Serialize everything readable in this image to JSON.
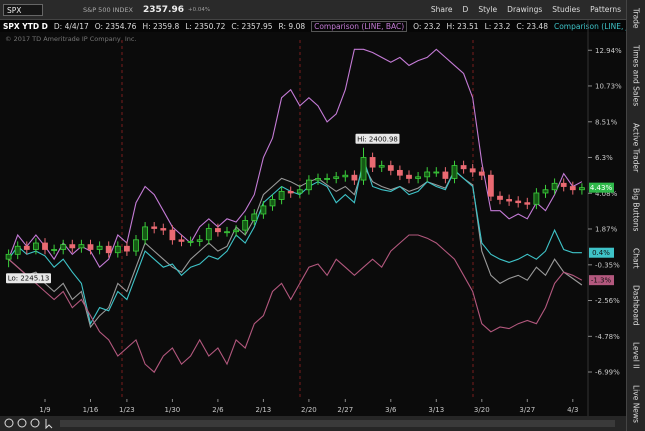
{
  "toolbar": {
    "symbol": "SPX",
    "description": "S&P 500 INDEX",
    "last": "2357.96",
    "change": "+0.04%",
    "buttons": [
      "Share",
      "D",
      "Style",
      "Drawings",
      "Studies",
      "Patterns"
    ]
  },
  "header": {
    "study": "SPX YTD D",
    "fields": [
      "D: 4/4/17",
      "O: 2354.76",
      "H: 2359.8",
      "L: 2350.72",
      "C: 2357.95",
      "R: 9.08"
    ],
    "bac_fields": [
      "O: 23.2",
      "H: 23.51",
      "L: 23.2",
      "C: 23.48"
    ]
  },
  "copyright": "© 2017 TD Ameritrade IP Company, Inc.",
  "side_tabs": [
    "Trade",
    "Times and Sales",
    "Active Trader",
    "Big Buttons",
    "Chart",
    "Dashboard",
    "Level II",
    "Live News"
  ],
  "chart_data": {
    "type": "candlestick",
    "categories": [
      null,
      null,
      null,
      null,
      "1/9",
      null,
      null,
      null,
      null,
      "1/16",
      null,
      null,
      null,
      "1/23",
      null,
      null,
      null,
      null,
      "1/30",
      null,
      null,
      null,
      null,
      "2/6",
      null,
      null,
      null,
      null,
      "2/13",
      null,
      null,
      null,
      null,
      "2/20",
      null,
      null,
      null,
      "2/27",
      null,
      null,
      null,
      null,
      "3/6",
      null,
      null,
      null,
      null,
      "3/13",
      null,
      null,
      null,
      null,
      "3/20",
      null,
      null,
      null,
      null,
      "3/27",
      null,
      null,
      null,
      null,
      "4/3",
      null
    ],
    "open": [
      0.0,
      0.3,
      0.8,
      0.6,
      1.0,
      0.6,
      0.6,
      0.9,
      0.7,
      0.9,
      0.6,
      0.8,
      0.4,
      0.8,
      0.5,
      1.2,
      2.0,
      1.9,
      1.8,
      1.2,
      1.1,
      1.1,
      1.2,
      1.9,
      1.7,
      1.7,
      1.8,
      2.4,
      2.8,
      3.3,
      3.7,
      4.2,
      4.1,
      4.3,
      4.9,
      5.0,
      5.0,
      5.1,
      5.2,
      4.9,
      6.3,
      5.7,
      5.8,
      5.5,
      5.2,
      5.0,
      5.1,
      5.4,
      5.4,
      5.0,
      5.8,
      5.6,
      5.4,
      5.2,
      3.9,
      3.7,
      3.6,
      3.5,
      3.4,
      4.1,
      4.3,
      4.7,
      4.5,
      4.3
    ],
    "high": [
      0.6,
      1.1,
      1.1,
      1.3,
      1.3,
      0.9,
      1.2,
      1.2,
      1.2,
      1.2,
      1.1,
      1.1,
      1.1,
      1.1,
      1.5,
      2.3,
      2.3,
      2.2,
      2.1,
      1.5,
      1.4,
      1.5,
      2.2,
      2.2,
      2.0,
      2.1,
      2.7,
      3.1,
      3.6,
      4.0,
      4.5,
      4.5,
      4.6,
      5.2,
      5.3,
      5.3,
      5.4,
      5.5,
      5.5,
      6.9,
      6.6,
      6.1,
      6.1,
      5.8,
      5.5,
      5.4,
      5.7,
      5.7,
      5.7,
      6.1,
      6.1,
      5.9,
      5.7,
      5.5,
      4.2,
      4.0,
      3.9,
      3.8,
      4.4,
      4.6,
      5.0,
      5.0,
      4.8,
      4.7
    ],
    "low": [
      -0.5,
      0.0,
      0.3,
      0.3,
      0.3,
      0.3,
      0.3,
      0.4,
      0.4,
      0.3,
      0.3,
      0.1,
      0.1,
      0.2,
      0.2,
      0.9,
      1.6,
      1.5,
      0.9,
      0.8,
      0.8,
      0.8,
      0.9,
      1.4,
      1.4,
      1.4,
      1.5,
      2.1,
      2.5,
      3.0,
      3.4,
      3.8,
      3.8,
      4.0,
      4.6,
      4.7,
      4.7,
      4.8,
      4.6,
      4.6,
      5.4,
      5.4,
      5.2,
      4.9,
      4.7,
      4.7,
      4.8,
      5.1,
      4.7,
      4.7,
      5.3,
      5.1,
      4.9,
      3.6,
      3.4,
      3.3,
      3.2,
      3.1,
      3.1,
      3.8,
      4.0,
      4.2,
      4.0,
      4.0
    ],
    "close": [
      0.3,
      0.8,
      0.6,
      1.0,
      0.6,
      0.6,
      0.9,
      0.7,
      0.9,
      0.6,
      0.8,
      0.4,
      0.8,
      0.5,
      1.2,
      2.0,
      1.9,
      1.8,
      1.2,
      1.1,
      1.1,
      1.2,
      1.9,
      1.7,
      1.7,
      1.8,
      2.4,
      2.8,
      3.3,
      3.7,
      4.2,
      4.1,
      4.3,
      4.9,
      5.0,
      5.0,
      5.1,
      5.2,
      4.9,
      6.3,
      5.7,
      5.8,
      5.5,
      5.2,
      5.0,
      5.1,
      5.4,
      5.4,
      5.0,
      5.8,
      5.6,
      5.4,
      5.2,
      3.9,
      3.7,
      3.6,
      3.5,
      3.4,
      4.1,
      4.3,
      4.7,
      4.5,
      4.3,
      4.43
    ],
    "close_label": "4.43%",
    "up_color": "#3ccf3c",
    "down_color": "#ea6a72",
    "label_color": "#2fb84a",
    "annotations": {
      "high": "Hi: 2400.98",
      "low": "Lo: 2245.13"
    },
    "series": [
      {
        "color": "#9a9a9a",
        "values": [
          0,
          -0.5,
          -1,
          -0.8,
          -1.5,
          -2,
          -1.5,
          -2.5,
          -2,
          -4.2,
          -3.5,
          -3,
          -1.5,
          -2,
          -0.5,
          1,
          0.5,
          0,
          -0.5,
          -0.8,
          0,
          0.5,
          1,
          0.5,
          0.8,
          2,
          1.5,
          2.5,
          4,
          4.5,
          5,
          4.8,
          4.5,
          4.8,
          5,
          4.6,
          4.2,
          4.5,
          4,
          5.8,
          4.8,
          4.5,
          4.3,
          4.5,
          4.2,
          4.4,
          4.8,
          4.6,
          4.4,
          5.5,
          5,
          4.6,
          0.5,
          -1,
          -1.5,
          -1.2,
          -1,
          -1.3,
          -0.5,
          -1,
          0,
          -0.8,
          -1.2,
          -1.6
        ]
      },
      {
        "name": "Comparison (LINE, BAC)",
        "color": "#c47bd6",
        "values": [
          0,
          1.5,
          0.8,
          1.5,
          0.8,
          0,
          1,
          0.3,
          0.8,
          0.5,
          -0.5,
          0,
          1.5,
          1,
          3.5,
          4.5,
          4,
          3,
          2,
          1.5,
          1,
          2,
          2.5,
          2,
          2.5,
          2.3,
          3,
          4,
          6.3,
          7.5,
          10,
          10.5,
          9.5,
          10,
          9.5,
          8.5,
          9,
          10.5,
          13,
          13,
          12.8,
          12.5,
          12.2,
          12.5,
          12,
          12.3,
          12.5,
          13,
          12.5,
          12,
          11.5,
          10,
          6,
          3,
          3,
          2.5,
          2.8,
          2.5,
          3.5,
          3,
          4,
          5.3,
          4.5,
          4.8
        ]
      },
      {
        "name": "Comparison (LINE, JPM)",
        "color": "#3ec3c8",
        "end_label": "0.4%",
        "values": [
          0,
          0.8,
          0.3,
          0.5,
          0.2,
          -0.5,
          0,
          -0.8,
          -1.5,
          -4,
          -3,
          -3.2,
          -2,
          -2.5,
          -1,
          0.5,
          0,
          -0.5,
          -0.3,
          -1,
          -0.5,
          -0.3,
          0.2,
          0,
          0.5,
          1.5,
          1,
          2,
          3.5,
          4,
          4.5,
          4.2,
          4,
          4.5,
          4.8,
          4.5,
          3.5,
          4,
          3.5,
          6.2,
          4.5,
          4.3,
          4.2,
          4.5,
          4,
          4.2,
          4.8,
          4.5,
          4.3,
          5.5,
          5,
          4.5,
          1,
          0.3,
          0,
          -0.2,
          0,
          0.3,
          0,
          0.5,
          1.8,
          0.6,
          0.4,
          0.4
        ]
      },
      {
        "color": "#b3587e",
        "end_label": "-1.3%",
        "values": [
          0,
          -0.5,
          -1,
          -1.5,
          -2,
          -2.5,
          -2,
          -3,
          -2.5,
          -3.5,
          -4.5,
          -5,
          -6,
          -5.5,
          -5,
          -6.5,
          -7,
          -6,
          -5.5,
          -6.5,
          -6,
          -5,
          -6,
          -5.5,
          -6.5,
          -5,
          -5.5,
          -4,
          -3.5,
          -2,
          -1.5,
          -2.5,
          -1.5,
          -0.5,
          -0.3,
          -1,
          0,
          -0.5,
          -1,
          -0.5,
          0,
          -0.5,
          0.5,
          1,
          1.5,
          1.5,
          1.3,
          1,
          0.5,
          0,
          -1,
          -2,
          -4,
          -4.5,
          -4.2,
          -4.3,
          -4,
          -3.8,
          -4,
          -3,
          -1.5,
          -0.8,
          -1,
          -1.3
        ]
      }
    ],
    "ylim": [
      -8.6,
      13.7
    ],
    "yticks": [
      {
        "value": 12.94,
        "label": "12.94%"
      },
      {
        "value": 10.73,
        "label": "10.73%"
      },
      {
        "value": 8.51,
        "label": "8.51%"
      },
      {
        "value": 6.3,
        "label": "6.3%"
      },
      {
        "value": 4.08,
        "label": "4.08%"
      },
      {
        "value": 1.87,
        "label": "1.87%"
      },
      {
        "value": -0.35,
        "label": "-0.35%"
      },
      {
        "value": -2.56,
        "label": "-2.56%"
      },
      {
        "value": -4.78,
        "label": "-4.78%"
      },
      {
        "value": -6.99,
        "label": "-6.99%"
      }
    ]
  }
}
